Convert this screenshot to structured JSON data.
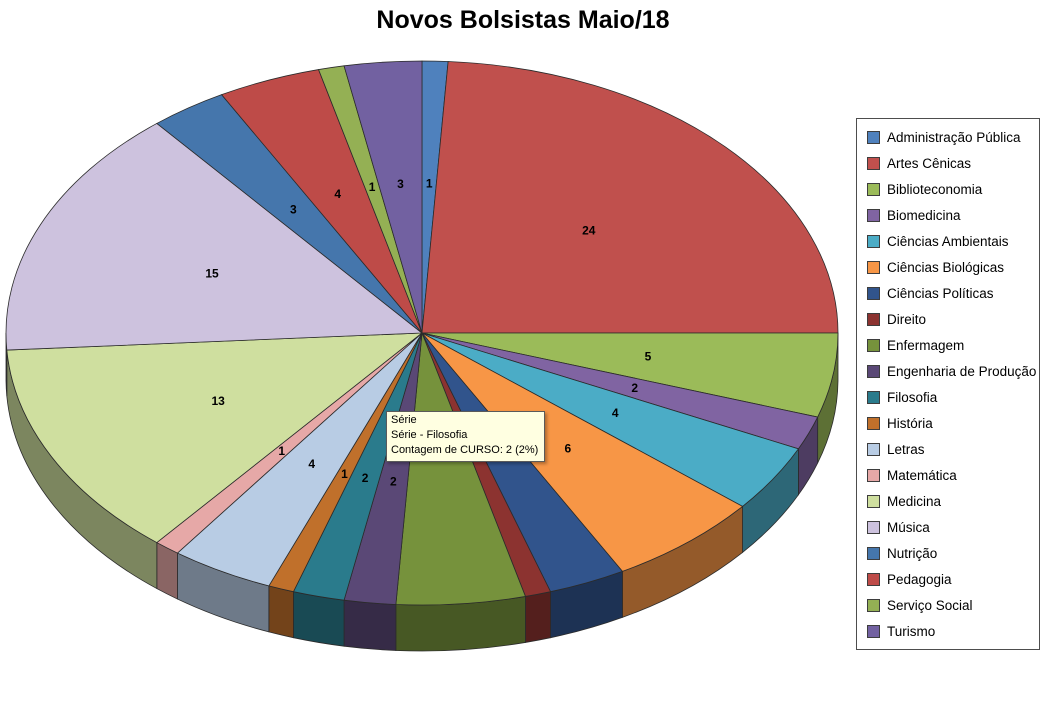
{
  "title": "Novos Bolsistas Maio/18",
  "tooltip": {
    "background": "#FFFFE1",
    "lines": [
      "Série",
      "Série - Filosofia",
      "Contagem de CURSO: 2 (2%)"
    ]
  },
  "chart_data": {
    "type": "pie",
    "style": "3d",
    "title": "Novos Bolsistas Maio/18",
    "series_name": "Série",
    "legend_position": "right",
    "categories": [
      "Administração Pública",
      "Artes Cênicas",
      "Biblioteconomia",
      "Biomedicina",
      "Ciências Ambientais",
      "Ciências Biológicas",
      "Ciências Políticas",
      "Direito",
      "Enfermagem",
      "Engenharia de Produção",
      "Filosofia",
      "História",
      "Letras",
      "Matemática",
      "Medicina",
      "Música",
      "Nutrição",
      "Pedagogia",
      "Serviço Social",
      "Turismo"
    ],
    "values": [
      1,
      24,
      5,
      2,
      4,
      6,
      3,
      1,
      5,
      2,
      2,
      1,
      4,
      1,
      13,
      15,
      3,
      4,
      1,
      3
    ],
    "colors": [
      "#4F81BD",
      "#C0504D",
      "#9BBB59",
      "#8064A2",
      "#4BACC6",
      "#F79646",
      "#31548C",
      "#8C3330",
      "#76923C",
      "#5A4876",
      "#2A7B8C",
      "#C0702B",
      "#B8CCE4",
      "#E6A8A7",
      "#CFDF9F",
      "#CDC2DE",
      "#4576AC",
      "#BE4B48",
      "#94B054",
      "#7261A1"
    ],
    "value_labels_hidden": [
      "Ciências Políticas",
      "Direito",
      "Enfermagem"
    ]
  }
}
